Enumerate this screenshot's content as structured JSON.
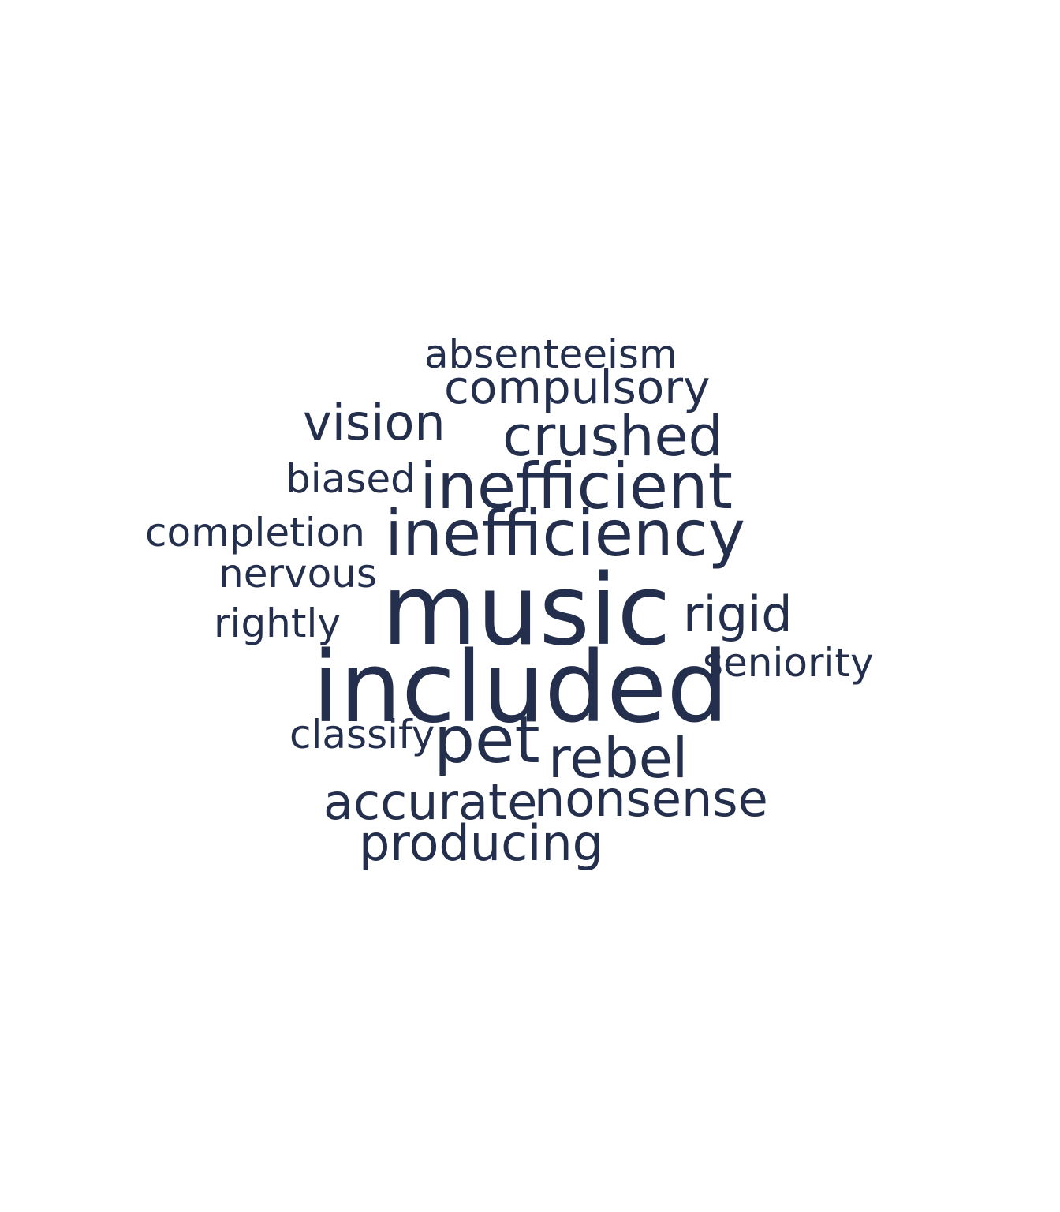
{
  "cloud": {
    "color": "#232f4d",
    "words": {
      "absenteeism": "absenteeism",
      "compulsory": "compulsory",
      "vision": "vision",
      "crushed": "crushed",
      "biased": "biased",
      "inefficient": "inefficient",
      "completion": "completion",
      "inefficiency": "inefficiency",
      "nervous": "nervous",
      "music": "music",
      "rigid": "rigid",
      "rightly": "rightly",
      "seniority": "seniority",
      "included": "included",
      "classify": "classify",
      "pet": "pet",
      "rebel": "rebel",
      "accurate": "accurate",
      "nonsense": "nonsense",
      "producing": "producing"
    }
  }
}
